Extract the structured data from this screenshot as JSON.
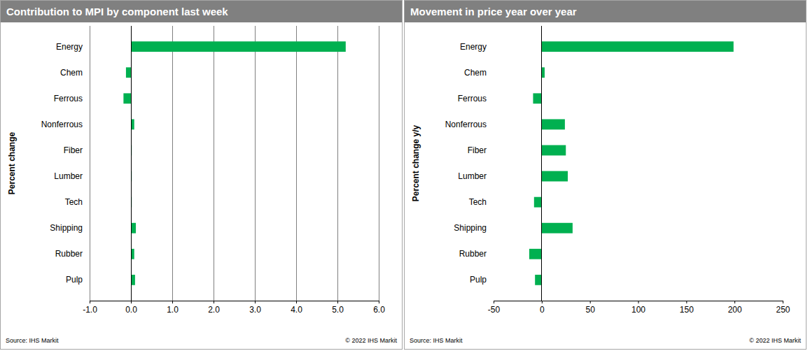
{
  "chart_data": [
    {
      "type": "bar",
      "orientation": "horizontal",
      "title": "Contribution to MPI by component last week",
      "y_label": "Percent change",
      "annotations": [
        "Source: IHS Markit",
        "© 2022 IHS Markit"
      ],
      "categories": [
        "Energy",
        "Chem",
        "Ferrous",
        "Nonferrous",
        "Fiber",
        "Lumber",
        "Tech",
        "Shipping",
        "Rubber",
        "Pulp"
      ],
      "values": [
        5.2,
        -0.12,
        -0.18,
        0.08,
        0.02,
        0.02,
        0.02,
        0.12,
        0.08,
        0.1
      ],
      "color": "#00b050",
      "xlim": [
        -1,
        6
      ],
      "xticks": [
        {
          "value": -1,
          "label": "-1.0"
        },
        {
          "value": 0,
          "label": "0.0"
        },
        {
          "value": 1,
          "label": "1.0"
        },
        {
          "value": 2,
          "label": "2.0"
        },
        {
          "value": 3,
          "label": "3.0"
        },
        {
          "value": 4,
          "label": "4.0"
        },
        {
          "value": 5,
          "label": "5.0"
        },
        {
          "value": 6,
          "label": "6.0"
        }
      ],
      "grid": true
    },
    {
      "type": "bar",
      "orientation": "horizontal",
      "title": "Movement in price year over year",
      "y_label": "Percent change y/y",
      "annotations": [
        "Source: IHS Markit",
        "© 2022 IHS Markit"
      ],
      "categories": [
        "Energy",
        "Chem",
        "Ferrous",
        "Nonferrous",
        "Fiber",
        "Lumber",
        "Tech",
        "Shipping",
        "Rubber",
        "Pulp"
      ],
      "values": [
        199,
        3,
        -9,
        24,
        25,
        27,
        -8,
        32,
        -13,
        -7
      ],
      "color": "#00b050",
      "xlim": [
        -50,
        250
      ],
      "xticks": [
        -50,
        0,
        50,
        100,
        150,
        200,
        250
      ],
      "grid": false
    }
  ]
}
